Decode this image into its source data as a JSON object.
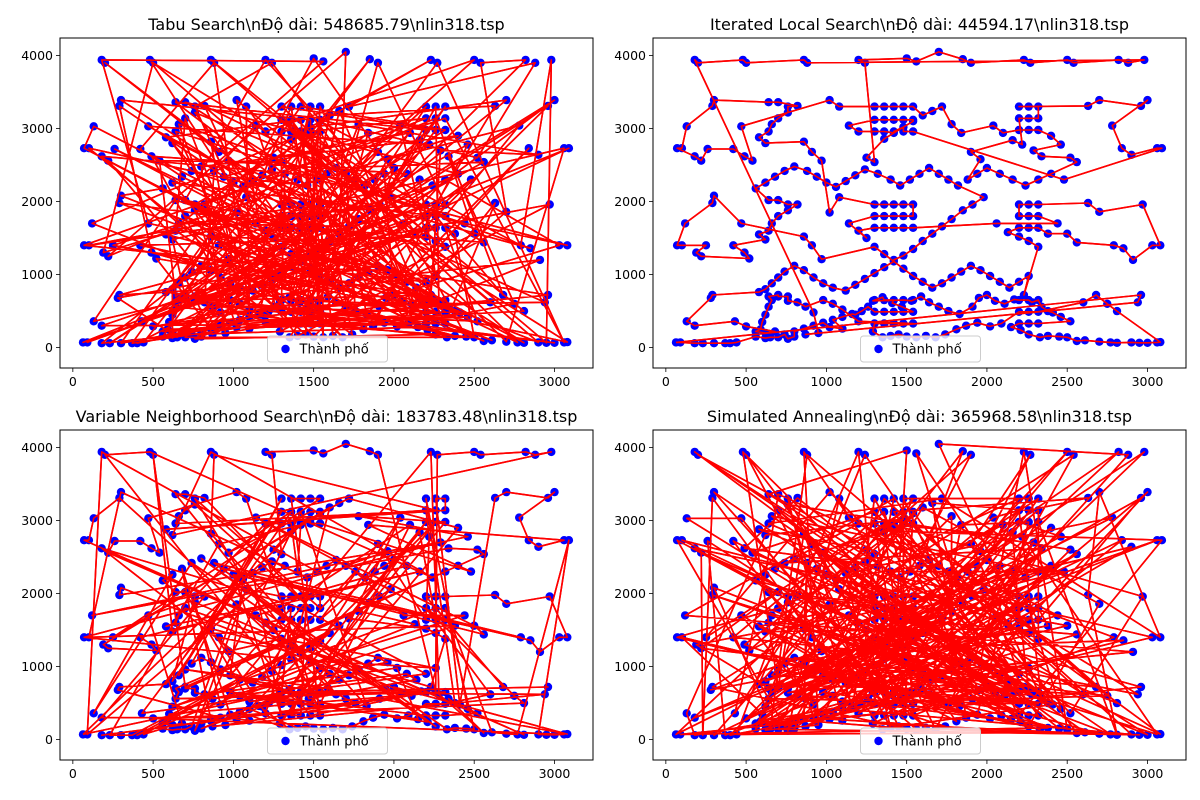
{
  "figure": {
    "background": "#ffffff"
  },
  "chart_data": [
    {
      "type": "scatter",
      "title": "Tabu Search\\nĐộ dài: 548685.79\\nlin318.tsp",
      "route_method": "random",
      "xlim": [
        -80,
        3240
      ],
      "ylim": [
        -280,
        4240
      ],
      "xticks": [
        0,
        500,
        1000,
        1500,
        2000,
        2500,
        3000
      ],
      "xtick_labels": [
        "0",
        "500",
        "1000",
        "1500",
        "2000",
        "2500",
        "3000"
      ],
      "yticks": [
        0,
        1000,
        2000,
        3000,
        4000
      ],
      "ytick_labels": [
        "0",
        "1000",
        "2000",
        "3000",
        "4000"
      ],
      "legend": {
        "label": "Thành phố",
        "location": "lower center"
      },
      "colors": {
        "points": "#0000ff",
        "route": "#ff0000"
      }
    },
    {
      "type": "scatter",
      "title": "Iterated Local Search\\nĐộ dài: 44594.17\\nlin318.tsp",
      "route_method": "ordered",
      "xlim": [
        -80,
        3240
      ],
      "ylim": [
        -280,
        4240
      ],
      "xticks": [
        0,
        500,
        1000,
        1500,
        2000,
        2500,
        3000
      ],
      "xtick_labels": [
        "0",
        "500",
        "1000",
        "1500",
        "2000",
        "2500",
        "3000"
      ],
      "yticks": [
        0,
        1000,
        2000,
        3000,
        4000
      ],
      "ytick_labels": [
        "0",
        "1000",
        "2000",
        "3000",
        "4000"
      ],
      "legend": {
        "label": "Thành phố",
        "location": "lower center"
      },
      "colors": {
        "points": "#0000ff",
        "route": "#ff0000"
      }
    },
    {
      "type": "scatter",
      "title": "Variable Neighborhood Search\\nĐộ dài: 183783.48\\nlin318.tsp",
      "route_method": "mixed",
      "xlim": [
        -80,
        3240
      ],
      "ylim": [
        -280,
        4240
      ],
      "xticks": [
        0,
        500,
        1000,
        1500,
        2000,
        2500,
        3000
      ],
      "xtick_labels": [
        "0",
        "500",
        "1000",
        "1500",
        "2000",
        "2500",
        "3000"
      ],
      "yticks": [
        0,
        1000,
        2000,
        3000,
        4000
      ],
      "ytick_labels": [
        "0",
        "1000",
        "2000",
        "3000",
        "4000"
      ],
      "legend": {
        "label": "Thành phố",
        "location": "lower center"
      },
      "colors": {
        "points": "#0000ff",
        "route": "#ff0000"
      }
    },
    {
      "type": "scatter",
      "title": "Simulated Annealing\\nĐộ dài: 365968.58\\nlin318.tsp",
      "route_method": "random",
      "xlim": [
        -80,
        3240
      ],
      "ylim": [
        -280,
        4240
      ],
      "xticks": [
        0,
        500,
        1000,
        1500,
        2000,
        2500,
        3000
      ],
      "xtick_labels": [
        "0",
        "500",
        "1000",
        "1500",
        "2000",
        "2500",
        "3000"
      ],
      "yticks": [
        0,
        1000,
        2000,
        3000,
        4000
      ],
      "ytick_labels": [
        "0",
        "1000",
        "2000",
        "3000",
        "4000"
      ],
      "legend": {
        "label": "Thành phố",
        "location": "lower center"
      },
      "colors": {
        "points": "#0000ff",
        "route": "#ff0000"
      }
    }
  ],
  "cities": [
    [
      63,
      70
    ],
    [
      90,
      70
    ],
    [
      180,
      60
    ],
    [
      230,
      60
    ],
    [
      300,
      60
    ],
    [
      370,
      60
    ],
    [
      400,
      60
    ],
    [
      440,
      70
    ],
    [
      560,
      150
    ],
    [
      620,
      130
    ],
    [
      650,
      140
    ],
    [
      700,
      140
    ],
    [
      760,
      120
    ],
    [
      800,
      150
    ],
    [
      870,
      180
    ],
    [
      950,
      200
    ],
    [
      1020,
      280
    ],
    [
      1100,
      260
    ],
    [
      1200,
      360
    ],
    [
      1290,
      220
    ],
    [
      1350,
      140
    ],
    [
      1400,
      160
    ],
    [
      1450,
      180
    ],
    [
      1500,
      150
    ],
    [
      1560,
      140
    ],
    [
      1620,
      160
    ],
    [
      1680,
      140
    ],
    [
      1740,
      180
    ],
    [
      1810,
      250
    ],
    [
      1870,
      300
    ],
    [
      1940,
      340
    ],
    [
      2020,
      290
    ],
    [
      2090,
      330
    ],
    [
      2150,
      280
    ],
    [
      2210,
      240
    ],
    [
      2260,
      180
    ],
    [
      2330,
      140
    ],
    [
      2380,
      160
    ],
    [
      2450,
      150
    ],
    [
      2500,
      140
    ],
    [
      2560,
      90
    ],
    [
      2610,
      100
    ],
    [
      2700,
      80
    ],
    [
      2770,
      70
    ],
    [
      2810,
      65
    ],
    [
      2900,
      70
    ],
    [
      2950,
      65
    ],
    [
      3000,
      65
    ],
    [
      3060,
      70
    ],
    [
      3080,
      75
    ],
    [
      130,
      360
    ],
    [
      180,
      300
    ],
    [
      280,
      680
    ],
    [
      290,
      720
    ],
    [
      430,
      360
    ],
    [
      500,
      290
    ],
    [
      560,
      220
    ],
    [
      590,
      250
    ],
    [
      600,
      350
    ],
    [
      620,
      450
    ],
    [
      640,
      560
    ],
    [
      660,
      650
    ],
    [
      700,
      720
    ],
    [
      760,
      700
    ],
    [
      820,
      620
    ],
    [
      870,
      560
    ],
    [
      920,
      480
    ],
    [
      980,
      650
    ],
    [
      1040,
      600
    ],
    [
      1100,
      520
    ],
    [
      1180,
      450
    ],
    [
      1260,
      560
    ],
    [
      1290,
      640
    ],
    [
      1350,
      690
    ],
    [
      1410,
      610
    ],
    [
      1470,
      560
    ],
    [
      1530,
      640
    ],
    [
      1590,
      700
    ],
    [
      1640,
      620
    ],
    [
      1700,
      560
    ],
    [
      1760,
      500
    ],
    [
      1830,
      460
    ],
    [
      1910,
      560
    ],
    [
      1950,
      680
    ],
    [
      2000,
      720
    ],
    [
      2050,
      640
    ],
    [
      2110,
      600
    ],
    [
      2170,
      660
    ],
    [
      2230,
      720
    ],
    [
      2280,
      620
    ],
    [
      2340,
      560
    ],
    [
      2380,
      500
    ],
    [
      2410,
      480
    ],
    [
      2460,
      420
    ],
    [
      2520,
      360
    ],
    [
      2600,
      620
    ],
    [
      2680,
      720
    ],
    [
      2750,
      600
    ],
    [
      2810,
      500
    ],
    [
      2940,
      620
    ],
    [
      2960,
      720
    ],
    [
      70,
      1400
    ],
    [
      100,
      1400
    ],
    [
      120,
      1700
    ],
    [
      190,
      1300
    ],
    [
      220,
      1250
    ],
    [
      250,
      1400
    ],
    [
      290,
      1980
    ],
    [
      300,
      2080
    ],
    [
      420,
      1400
    ],
    [
      470,
      1700
    ],
    [
      490,
      1300
    ],
    [
      520,
      1220
    ],
    [
      580,
      1550
    ],
    [
      620,
      1480
    ],
    [
      640,
      1600
    ],
    [
      660,
      1700
    ],
    [
      700,
      1800
    ],
    [
      760,
      1880
    ],
    [
      820,
      1960
    ],
    [
      860,
      1520
    ],
    [
      910,
      1400
    ],
    [
      970,
      1210
    ],
    [
      1020,
      1850
    ],
    [
      1080,
      2060
    ],
    [
      1140,
      1700
    ],
    [
      1200,
      1600
    ],
    [
      1250,
      1500
    ],
    [
      1300,
      1380
    ],
    [
      1360,
      1280
    ],
    [
      1420,
      1200
    ],
    [
      1480,
      1260
    ],
    [
      1540,
      1350
    ],
    [
      1600,
      1460
    ],
    [
      1660,
      1560
    ],
    [
      1720,
      1660
    ],
    [
      1780,
      1760
    ],
    [
      1850,
      1880
    ],
    [
      1910,
      1960
    ],
    [
      1980,
      2060
    ],
    [
      2060,
      1700
    ],
    [
      2130,
      1580
    ],
    [
      2200,
      1520
    ],
    [
      2260,
      1460
    ],
    [
      2320,
      1380
    ],
    [
      2380,
      1560
    ],
    [
      2440,
      1700
    ],
    [
      2500,
      1560
    ],
    [
      2560,
      1440
    ],
    [
      2630,
      1980
    ],
    [
      2700,
      1860
    ],
    [
      2790,
      1400
    ],
    [
      2850,
      1360
    ],
    [
      2910,
      1200
    ],
    [
      2970,
      1960
    ],
    [
      3030,
      1400
    ],
    [
      3080,
      1400
    ],
    [
      70,
      2730
    ],
    [
      100,
      2730
    ],
    [
      130,
      3030
    ],
    [
      180,
      2620
    ],
    [
      220,
      2560
    ],
    [
      260,
      2720
    ],
    [
      290,
      3310
    ],
    [
      300,
      3390
    ],
    [
      420,
      2720
    ],
    [
      470,
      3030
    ],
    [
      490,
      2620
    ],
    [
      540,
      2560
    ],
    [
      580,
      2880
    ],
    [
      620,
      2800
    ],
    [
      640,
      2960
    ],
    [
      660,
      3060
    ],
    [
      700,
      3140
    ],
    [
      760,
      3220
    ],
    [
      820,
      3310
    ],
    [
      860,
      2820
    ],
    [
      910,
      2680
    ],
    [
      970,
      2560
    ],
    [
      1020,
      3390
    ],
    [
      1080,
      3300
    ],
    [
      1140,
      3040
    ],
    [
      1200,
      2960
    ],
    [
      1250,
      2600
    ],
    [
      1300,
      2540
    ],
    [
      1360,
      2860
    ],
    [
      1420,
      2940
    ],
    [
      1480,
      3020
    ],
    [
      1540,
      3100
    ],
    [
      1600,
      3180
    ],
    [
      1660,
      3240
    ],
    [
      1720,
      3300
    ],
    [
      1780,
      3060
    ],
    [
      1840,
      2940
    ],
    [
      1900,
      2680
    ],
    [
      1960,
      2580
    ],
    [
      2040,
      3040
    ],
    [
      2100,
      2940
    ],
    [
      2160,
      2840
    ],
    [
      2220,
      2780
    ],
    [
      2290,
      2700
    ],
    [
      2340,
      2620
    ],
    [
      2400,
      2900
    ],
    [
      2460,
      2780
    ],
    [
      2520,
      2600
    ],
    [
      2560,
      2540
    ],
    [
      2630,
      3310
    ],
    [
      2700,
      3390
    ],
    [
      2780,
      3040
    ],
    [
      2840,
      2730
    ],
    [
      2900,
      2640
    ],
    [
      2960,
      3310
    ],
    [
      3000,
      3390
    ],
    [
      3060,
      2730
    ],
    [
      3090,
      2730
    ],
    [
      180,
      3940
    ],
    [
      200,
      3900
    ],
    [
      480,
      3940
    ],
    [
      500,
      3900
    ],
    [
      860,
      3940
    ],
    [
      880,
      3900
    ],
    [
      1200,
      3940
    ],
    [
      1240,
      3900
    ],
    [
      1500,
      3960
    ],
    [
      1560,
      3920
    ],
    [
      1700,
      4050
    ],
    [
      1850,
      3950
    ],
    [
      1900,
      3900
    ],
    [
      2230,
      3940
    ],
    [
      2270,
      3900
    ],
    [
      2500,
      3940
    ],
    [
      2540,
      3900
    ],
    [
      2820,
      3940
    ],
    [
      2880,
      3900
    ],
    [
      2980,
      3940
    ],
    [
      580,
      760
    ],
    [
      620,
      800
    ],
    [
      660,
      880
    ],
    [
      700,
      960
    ],
    [
      740,
      1040
    ],
    [
      800,
      1120
    ],
    [
      860,
      1060
    ],
    [
      920,
      960
    ],
    [
      980,
      880
    ],
    [
      1040,
      820
    ],
    [
      1120,
      780
    ],
    [
      1180,
      860
    ],
    [
      1240,
      940
    ],
    [
      1300,
      1020
    ],
    [
      1360,
      1100
    ],
    [
      1420,
      1180
    ],
    [
      1480,
      1080
    ],
    [
      1540,
      980
    ],
    [
      1600,
      900
    ],
    [
      1660,
      820
    ],
    [
      1720,
      880
    ],
    [
      1780,
      960
    ],
    [
      1840,
      1040
    ],
    [
      1900,
      1120
    ],
    [
      1960,
      1060
    ],
    [
      2020,
      980
    ],
    [
      2080,
      900
    ],
    [
      2140,
      820
    ],
    [
      2200,
      900
    ],
    [
      2260,
      980
    ],
    [
      560,
      2180
    ],
    [
      620,
      2260
    ],
    [
      680,
      2340
    ],
    [
      740,
      2420
    ],
    [
      800,
      2480
    ],
    [
      880,
      2420
    ],
    [
      940,
      2340
    ],
    [
      1000,
      2260
    ],
    [
      1060,
      2200
    ],
    [
      1120,
      2280
    ],
    [
      1180,
      2360
    ],
    [
      1240,
      2440
    ],
    [
      1320,
      2380
    ],
    [
      1400,
      2300
    ],
    [
      1460,
      2220
    ],
    [
      1520,
      2300
    ],
    [
      1580,
      2380
    ],
    [
      1640,
      2460
    ],
    [
      1700,
      2380
    ],
    [
      1760,
      2300
    ],
    [
      1820,
      2220
    ],
    [
      1880,
      2300
    ],
    [
      1940,
      2380
    ],
    [
      2000,
      2460
    ],
    [
      2080,
      2380
    ],
    [
      2160,
      2300
    ],
    [
      2240,
      2220
    ],
    [
      2320,
      2300
    ],
    [
      2400,
      2380
    ],
    [
      2480,
      2300
    ],
    [
      1300,
      3300
    ],
    [
      1360,
      3300
    ],
    [
      1420,
      3300
    ],
    [
      1480,
      3300
    ],
    [
      1540,
      3300
    ],
    [
      1300,
      3120
    ],
    [
      1360,
      3120
    ],
    [
      1420,
      3120
    ],
    [
      1480,
      3120
    ],
    [
      1540,
      3120
    ],
    [
      1300,
      2960
    ],
    [
      1360,
      2960
    ],
    [
      1420,
      2960
    ],
    [
      1480,
      2960
    ],
    [
      1540,
      2960
    ],
    [
      1300,
      1960
    ],
    [
      1360,
      1960
    ],
    [
      1420,
      1960
    ],
    [
      1480,
      1960
    ],
    [
      1540,
      1960
    ],
    [
      1300,
      1800
    ],
    [
      1360,
      1800
    ],
    [
      1420,
      1800
    ],
    [
      1480,
      1800
    ],
    [
      1540,
      1800
    ],
    [
      1300,
      1640
    ],
    [
      1360,
      1640
    ],
    [
      1420,
      1640
    ],
    [
      1480,
      1640
    ],
    [
      1540,
      1640
    ],
    [
      1300,
      650
    ],
    [
      1360,
      650
    ],
    [
      1420,
      650
    ],
    [
      1480,
      650
    ],
    [
      1540,
      650
    ],
    [
      1300,
      490
    ],
    [
      1360,
      490
    ],
    [
      1420,
      490
    ],
    [
      1480,
      490
    ],
    [
      1540,
      490
    ],
    [
      1300,
      330
    ],
    [
      1360,
      330
    ],
    [
      1420,
      330
    ],
    [
      1480,
      330
    ],
    [
      1540,
      330
    ],
    [
      2200,
      3300
    ],
    [
      2260,
      3300
    ],
    [
      2320,
      3300
    ],
    [
      2200,
      3140
    ],
    [
      2260,
      3140
    ],
    [
      2320,
      3140
    ],
    [
      2200,
      2980
    ],
    [
      2260,
      2980
    ],
    [
      2320,
      2980
    ],
    [
      2200,
      1960
    ],
    [
      2260,
      1960
    ],
    [
      2320,
      1960
    ],
    [
      2200,
      1800
    ],
    [
      2260,
      1800
    ],
    [
      2320,
      1800
    ],
    [
      2200,
      1640
    ],
    [
      2260,
      1640
    ],
    [
      2320,
      1640
    ],
    [
      2200,
      650
    ],
    [
      2260,
      650
    ],
    [
      2320,
      650
    ],
    [
      2200,
      490
    ],
    [
      2260,
      490
    ],
    [
      2320,
      490
    ],
    [
      2200,
      330
    ],
    [
      2260,
      330
    ],
    [
      2320,
      330
    ],
    [
      640,
      3360
    ],
    [
      700,
      3360
    ],
    [
      760,
      3300
    ],
    [
      640,
      2020
    ],
    [
      700,
      2020
    ],
    [
      760,
      1960
    ],
    [
      640,
      700
    ],
    [
      700,
      700
    ],
    [
      760,
      640
    ],
    [
      620,
      200
    ],
    [
      680,
      220
    ],
    [
      740,
      180
    ],
    [
      800,
      220
    ],
    [
      860,
      260
    ],
    [
      920,
      300
    ],
    [
      980,
      340
    ],
    [
      1040,
      380
    ],
    [
      1100,
      420
    ],
    [
      1160,
      460
    ],
    [
      1220,
      500
    ]
  ]
}
